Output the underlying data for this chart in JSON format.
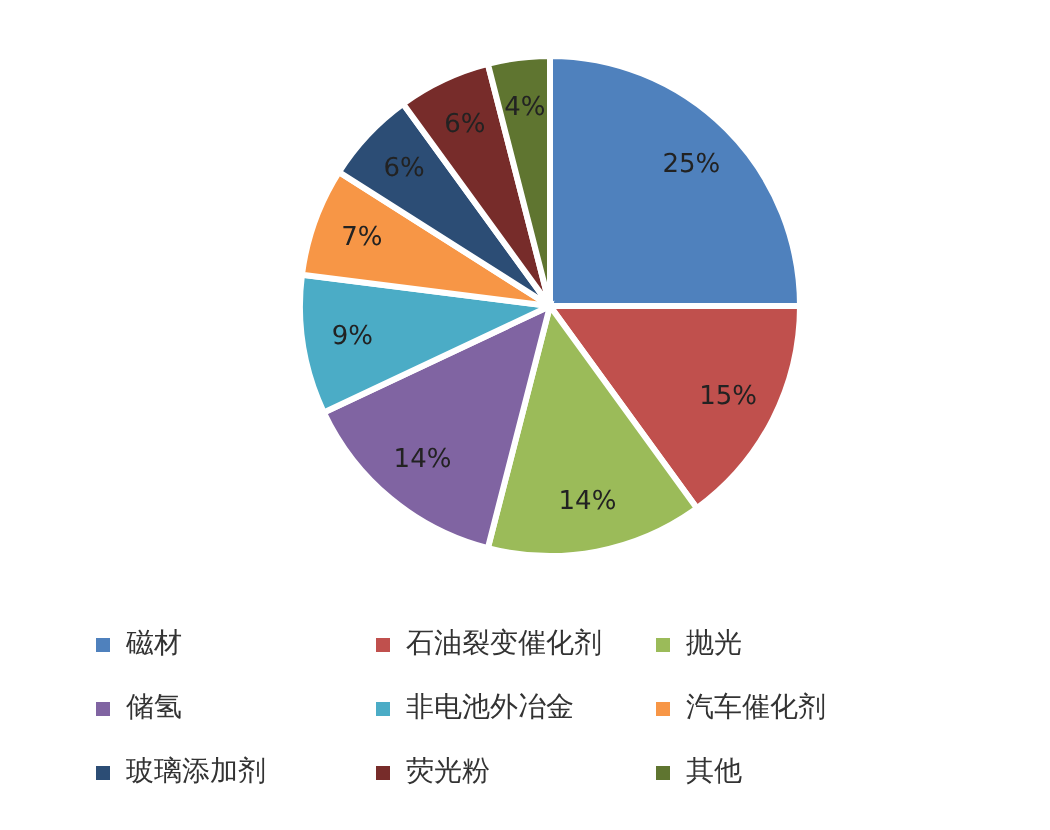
{
  "chart_data": {
    "type": "pie",
    "categories": [
      "磁材",
      "石油裂变催化剂",
      "抛光",
      "储氢",
      "非电池外冶金",
      "汽车催化剂",
      "玻璃添加剂",
      "荧光粉",
      "其他"
    ],
    "values": [
      25,
      15,
      14,
      14,
      9,
      7,
      6,
      6,
      4
    ],
    "colors": [
      "#4f81bd",
      "#c0504d",
      "#9bbb59",
      "#8064a2",
      "#4bacc6",
      "#f79646",
      "#2c4d75",
      "#772c2a",
      "#5f7530"
    ],
    "value_labels": [
      "25%",
      "15%",
      "14%",
      "14%",
      "9%",
      "7%",
      "6%",
      "6%",
      "4%"
    ],
    "legend": "bottom"
  }
}
